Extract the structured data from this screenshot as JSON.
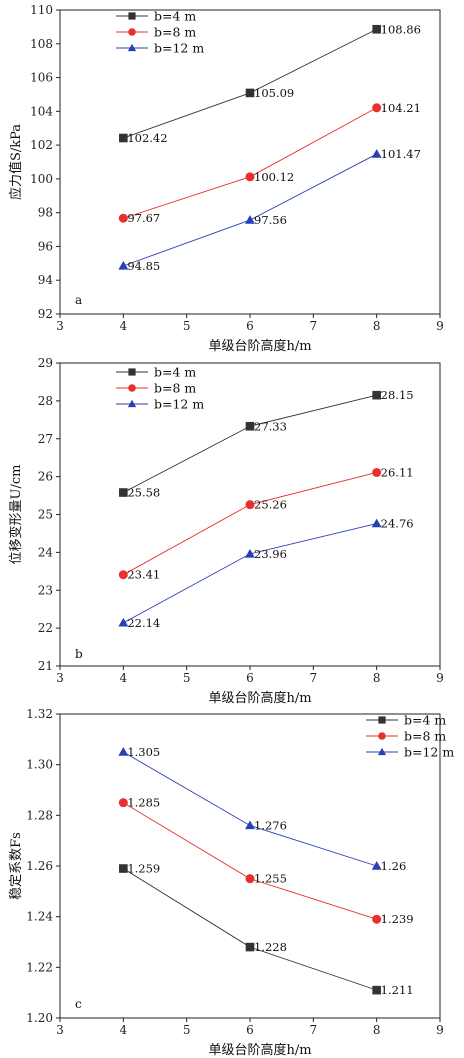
{
  "chart_data": [
    {
      "type": "line",
      "panel_label": "a",
      "xlabel": "单级台阶高度h/m",
      "ylabel": "应力值S/kPa",
      "xlim": [
        3,
        9
      ],
      "ylim": [
        92,
        110
      ],
      "xticks": [
        3,
        4,
        5,
        6,
        7,
        8,
        9
      ],
      "yticks": [
        92,
        94,
        96,
        98,
        100,
        102,
        104,
        106,
        108,
        110
      ],
      "legend_position": "top-left",
      "series": [
        {
          "name": "b=4 m",
          "marker": "square",
          "color": "#333333",
          "x": [
            4,
            6,
            8
          ],
          "values": [
            102.42,
            105.09,
            108.86
          ],
          "labels": [
            "102.42",
            "105.09",
            "108.86"
          ]
        },
        {
          "name": "b=8 m",
          "marker": "circle",
          "color": "#e8302f",
          "x": [
            4,
            6,
            8
          ],
          "values": [
            97.67,
            100.12,
            104.21
          ],
          "labels": [
            "97.67",
            "100.12",
            "104.21"
          ]
        },
        {
          "name": "b=12 m",
          "marker": "triangle",
          "color": "#2b3fb5",
          "x": [
            4,
            6,
            8
          ],
          "values": [
            94.85,
            97.56,
            101.47
          ],
          "labels": [
            "94.85",
            "97.56",
            "101.47"
          ]
        }
      ]
    },
    {
      "type": "line",
      "panel_label": "b",
      "xlabel": "单级台阶高度h/m",
      "ylabel": "位移变形量U/cm",
      "xlim": [
        3,
        9
      ],
      "ylim": [
        21,
        29
      ],
      "xticks": [
        3,
        4,
        5,
        6,
        7,
        8,
        9
      ],
      "yticks": [
        21,
        22,
        23,
        24,
        25,
        26,
        27,
        28,
        29
      ],
      "legend_position": "top-left",
      "series": [
        {
          "name": "b=4 m",
          "marker": "square",
          "color": "#333333",
          "x": [
            4,
            6,
            8
          ],
          "values": [
            25.58,
            27.33,
            28.15
          ],
          "labels": [
            "25.58",
            "27.33",
            "28.15"
          ]
        },
        {
          "name": "b=8 m",
          "marker": "circle",
          "color": "#e8302f",
          "x": [
            4,
            6,
            8
          ],
          "values": [
            23.41,
            25.26,
            26.11
          ],
          "labels": [
            "23.41",
            "25.26",
            "26.11"
          ]
        },
        {
          "name": "b=12 m",
          "marker": "triangle",
          "color": "#2b3fb5",
          "x": [
            4,
            6,
            8
          ],
          "values": [
            22.14,
            23.96,
            24.76
          ],
          "labels": [
            "22.14",
            "23.96",
            "24.76"
          ]
        }
      ]
    },
    {
      "type": "line",
      "panel_label": "c",
      "xlabel": "单级台阶高度h/m",
      "ylabel": "稳定系数Fs",
      "xlim": [
        3,
        9
      ],
      "ylim": [
        1.2,
        1.32
      ],
      "xticks": [
        3,
        4,
        5,
        6,
        7,
        8,
        9
      ],
      "yticks": [
        "1.20",
        "1.22",
        "1.24",
        "1.26",
        "1.28",
        "1.30",
        "1.32"
      ],
      "legend_position": "top-right",
      "series": [
        {
          "name": "b=4 m",
          "marker": "square",
          "color": "#333333",
          "x": [
            4,
            6,
            8
          ],
          "values": [
            1.259,
            1.228,
            1.211
          ],
          "labels": [
            "1.259",
            "1.228",
            "1.211"
          ]
        },
        {
          "name": "b=8 m",
          "marker": "circle",
          "color": "#e8302f",
          "x": [
            4,
            6,
            8
          ],
          "values": [
            1.285,
            1.255,
            1.239
          ],
          "labels": [
            "1.285",
            "1.255",
            "1.239"
          ]
        },
        {
          "name": "b=12 m",
          "marker": "triangle",
          "color": "#2b3fb5",
          "x": [
            4,
            6,
            8
          ],
          "values": [
            1.305,
            1.276,
            1.26
          ],
          "labels": [
            "1.305",
            "1.276",
            "1.26"
          ]
        }
      ]
    }
  ]
}
